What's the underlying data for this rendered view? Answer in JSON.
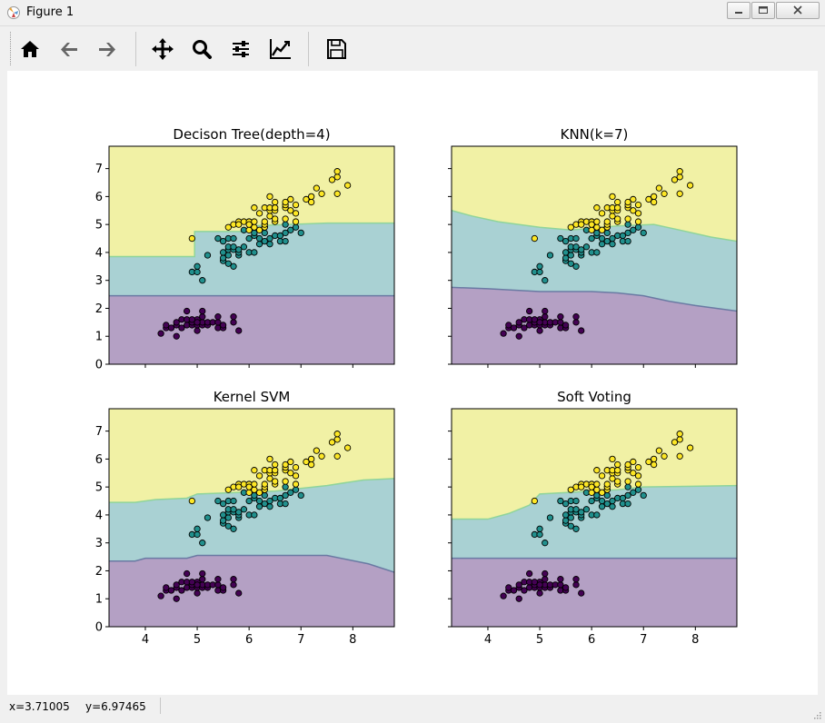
{
  "window": {
    "title": "Figure 1"
  },
  "toolbar": {
    "buttons": [
      {
        "name": "home-button",
        "icon": "home-icon"
      },
      {
        "name": "back-button",
        "icon": "arrow-left-icon"
      },
      {
        "name": "forward-button",
        "icon": "arrow-right-icon"
      },
      {
        "name": "pan-button",
        "icon": "move-icon"
      },
      {
        "name": "zoom-button",
        "icon": "search-icon"
      },
      {
        "name": "configure-subplots-button",
        "icon": "sliders-icon"
      },
      {
        "name": "edit-axes-button",
        "icon": "line-chart-icon"
      },
      {
        "name": "save-button",
        "icon": "floppy-disk-icon"
      }
    ]
  },
  "status": {
    "x_readout": "x=3.71005",
    "y_readout": "y=6.97465"
  },
  "colors": {
    "region_0": "#b4a0c4",
    "region_1": "#a9d1d3",
    "region_2": "#f1f1a5",
    "class_0": "#440154",
    "class_1": "#21908d",
    "class_2": "#fde725",
    "boundary_0": "#6a7aa3",
    "boundary_1": "#8fd49a"
  },
  "chart_data": [
    {
      "type": "scatter",
      "title": "Decison Tree(depth=4)",
      "xlim": [
        3.3,
        8.8
      ],
      "ylim": [
        0,
        7.8
      ],
      "xticks": [
        4,
        5,
        6,
        7,
        8
      ],
      "yticks": [
        0,
        1,
        2,
        3,
        4,
        5,
        6,
        7
      ],
      "show_xticklabels": false,
      "show_yticklabels": true,
      "boundary_lower": [
        [
          3.3,
          2.45
        ],
        [
          8.8,
          2.45
        ]
      ],
      "boundary_upper": [
        [
          3.3,
          3.85
        ],
        [
          4.95,
          3.85
        ],
        [
          4.95,
          4.75
        ],
        [
          6.0,
          4.75
        ],
        [
          6.0,
          4.95
        ],
        [
          7.5,
          5.05
        ],
        [
          8.8,
          5.05
        ]
      ]
    },
    {
      "type": "scatter",
      "title": "KNN(k=7)",
      "xlim": [
        3.3,
        8.8
      ],
      "ylim": [
        0,
        7.8
      ],
      "xticks": [
        4,
        5,
        6,
        7,
        8
      ],
      "yticks": [
        0,
        1,
        2,
        3,
        4,
        5,
        6,
        7
      ],
      "show_xticklabels": false,
      "show_yticklabels": false,
      "boundary_lower": [
        [
          3.3,
          2.75
        ],
        [
          4.0,
          2.7
        ],
        [
          5.0,
          2.6
        ],
        [
          6.0,
          2.6
        ],
        [
          6.5,
          2.55
        ],
        [
          7.0,
          2.45
        ],
        [
          7.5,
          2.25
        ],
        [
          8.0,
          2.1
        ],
        [
          8.8,
          1.9
        ]
      ],
      "boundary_upper": [
        [
          3.3,
          5.5
        ],
        [
          3.7,
          5.3
        ],
        [
          4.2,
          5.1
        ],
        [
          5.0,
          4.9
        ],
        [
          5.6,
          4.8
        ],
        [
          6.5,
          4.95
        ],
        [
          7.2,
          5.0
        ],
        [
          7.7,
          4.8
        ],
        [
          8.3,
          4.55
        ],
        [
          8.8,
          4.4
        ]
      ]
    },
    {
      "type": "scatter",
      "title": "Kernel SVM",
      "xlim": [
        3.3,
        8.8
      ],
      "ylim": [
        0,
        7.8
      ],
      "xticks": [
        4,
        5,
        6,
        7,
        8
      ],
      "yticks": [
        0,
        1,
        2,
        3,
        4,
        5,
        6,
        7
      ],
      "show_xticklabels": true,
      "show_yticklabels": true,
      "boundary_lower": [
        [
          3.3,
          2.35
        ],
        [
          3.8,
          2.35
        ],
        [
          4.0,
          2.45
        ],
        [
          4.8,
          2.45
        ],
        [
          5.0,
          2.55
        ],
        [
          7.5,
          2.55
        ],
        [
          7.9,
          2.4
        ],
        [
          8.3,
          2.25
        ],
        [
          8.8,
          1.95
        ]
      ],
      "boundary_upper": [
        [
          3.3,
          4.45
        ],
        [
          3.8,
          4.45
        ],
        [
          4.2,
          4.55
        ],
        [
          4.8,
          4.6
        ],
        [
          5.0,
          4.75
        ],
        [
          6.5,
          4.85
        ],
        [
          7.5,
          5.05
        ],
        [
          8.2,
          5.25
        ],
        [
          8.8,
          5.3
        ]
      ]
    },
    {
      "type": "scatter",
      "title": "Soft Voting",
      "xlim": [
        3.3,
        8.8
      ],
      "ylim": [
        0,
        7.8
      ],
      "xticks": [
        4,
        5,
        6,
        7,
        8
      ],
      "yticks": [
        0,
        1,
        2,
        3,
        4,
        5,
        6,
        7
      ],
      "show_xticklabels": true,
      "show_yticklabels": false,
      "boundary_lower": [
        [
          3.3,
          2.45
        ],
        [
          8.8,
          2.45
        ]
      ],
      "boundary_upper": [
        [
          3.3,
          3.85
        ],
        [
          4.0,
          3.85
        ],
        [
          4.4,
          4.05
        ],
        [
          4.8,
          4.35
        ],
        [
          5.0,
          4.75
        ],
        [
          6.5,
          4.9
        ],
        [
          7.0,
          5.0
        ],
        [
          8.8,
          5.05
        ]
      ]
    }
  ],
  "points": {
    "class_0": [
      [
        4.3,
        1.1
      ],
      [
        4.4,
        1.3
      ],
      [
        4.4,
        1.4
      ],
      [
        4.5,
        1.3
      ],
      [
        4.6,
        1.4
      ],
      [
        4.6,
        1.5
      ],
      [
        4.7,
        1.3
      ],
      [
        4.7,
        1.6
      ],
      [
        4.8,
        1.4
      ],
      [
        4.8,
        1.6
      ],
      [
        4.8,
        1.9
      ],
      [
        4.9,
        1.4
      ],
      [
        4.9,
        1.5
      ],
      [
        5.0,
        1.2
      ],
      [
        5.0,
        1.4
      ],
      [
        5.0,
        1.6
      ],
      [
        5.1,
        1.4
      ],
      [
        5.1,
        1.5
      ],
      [
        5.1,
        1.7
      ],
      [
        5.1,
        1.9
      ],
      [
        5.2,
        1.4
      ],
      [
        5.2,
        1.5
      ],
      [
        5.3,
        1.5
      ],
      [
        5.4,
        1.3
      ],
      [
        5.4,
        1.5
      ],
      [
        5.4,
        1.7
      ],
      [
        5.5,
        1.3
      ],
      [
        5.5,
        1.4
      ],
      [
        5.7,
        1.5
      ],
      [
        5.7,
        1.7
      ],
      [
        5.8,
        1.2
      ],
      [
        4.6,
        1.0
      ],
      [
        5.0,
        1.5
      ],
      [
        4.9,
        1.6
      ]
    ],
    "class_1": [
      [
        4.9,
        3.3
      ],
      [
        5.0,
        3.3
      ],
      [
        5.0,
        3.5
      ],
      [
        5.1,
        3.0
      ],
      [
        5.2,
        3.9
      ],
      [
        5.4,
        4.5
      ],
      [
        5.5,
        3.7
      ],
      [
        5.5,
        3.8
      ],
      [
        5.5,
        4.0
      ],
      [
        5.5,
        4.4
      ],
      [
        5.6,
        3.6
      ],
      [
        5.6,
        3.9
      ],
      [
        5.6,
        4.1
      ],
      [
        5.6,
        4.2
      ],
      [
        5.6,
        4.5
      ],
      [
        5.7,
        3.5
      ],
      [
        5.7,
        4.1
      ],
      [
        5.7,
        4.2
      ],
      [
        5.7,
        4.5
      ],
      [
        5.8,
        3.9
      ],
      [
        5.8,
        4.0
      ],
      [
        5.8,
        4.1
      ],
      [
        5.9,
        4.2
      ],
      [
        5.9,
        4.8
      ],
      [
        6.0,
        4.0
      ],
      [
        6.0,
        4.5
      ],
      [
        6.0,
        5.1
      ],
      [
        6.1,
        4.0
      ],
      [
        6.1,
        4.6
      ],
      [
        6.1,
        4.7
      ],
      [
        6.2,
        4.3
      ],
      [
        6.2,
        4.5
      ],
      [
        6.3,
        4.4
      ],
      [
        6.3,
        4.7
      ],
      [
        6.3,
        4.9
      ],
      [
        6.4,
        4.3
      ],
      [
        6.4,
        4.5
      ],
      [
        6.5,
        4.6
      ],
      [
        6.6,
        4.4
      ],
      [
        6.6,
        4.6
      ],
      [
        6.7,
        4.4
      ],
      [
        6.7,
        4.7
      ],
      [
        6.7,
        5.0
      ],
      [
        6.8,
        4.8
      ],
      [
        6.9,
        4.9
      ],
      [
        7.0,
        4.7
      ]
    ],
    "class_2": [
      [
        4.9,
        4.5
      ],
      [
        5.6,
        4.9
      ],
      [
        5.7,
        5.0
      ],
      [
        5.8,
        5.1
      ],
      [
        5.9,
        5.1
      ],
      [
        6.0,
        4.8
      ],
      [
        6.0,
        5.1
      ],
      [
        6.1,
        5.6
      ],
      [
        6.2,
        4.8
      ],
      [
        6.3,
        4.9
      ],
      [
        6.3,
        5.0
      ],
      [
        6.3,
        5.1
      ],
      [
        6.3,
        5.6
      ],
      [
        6.4,
        5.3
      ],
      [
        6.4,
        5.5
      ],
      [
        6.4,
        5.6
      ],
      [
        6.5,
        5.1
      ],
      [
        6.5,
        5.2
      ],
      [
        6.5,
        5.5
      ],
      [
        6.5,
        5.8
      ],
      [
        6.7,
        5.2
      ],
      [
        6.7,
        5.6
      ],
      [
        6.7,
        5.7
      ],
      [
        6.8,
        5.5
      ],
      [
        6.8,
        5.9
      ],
      [
        6.9,
        5.1
      ],
      [
        6.9,
        5.4
      ],
      [
        6.9,
        5.7
      ],
      [
        6.2,
        5.4
      ],
      [
        6.0,
        5.0
      ],
      [
        6.1,
        4.9
      ],
      [
        6.4,
        6.0
      ],
      [
        6.5,
        5.6
      ],
      [
        6.7,
        5.8
      ],
      [
        7.1,
        5.9
      ],
      [
        7.2,
        5.8
      ],
      [
        7.2,
        6.0
      ],
      [
        7.3,
        6.3
      ],
      [
        7.4,
        6.1
      ],
      [
        7.6,
        6.6
      ],
      [
        7.7,
        6.1
      ],
      [
        7.7,
        6.7
      ],
      [
        7.7,
        6.9
      ],
      [
        7.9,
        6.4
      ],
      [
        6.1,
        5.1
      ],
      [
        5.8,
        5.0
      ]
    ]
  }
}
